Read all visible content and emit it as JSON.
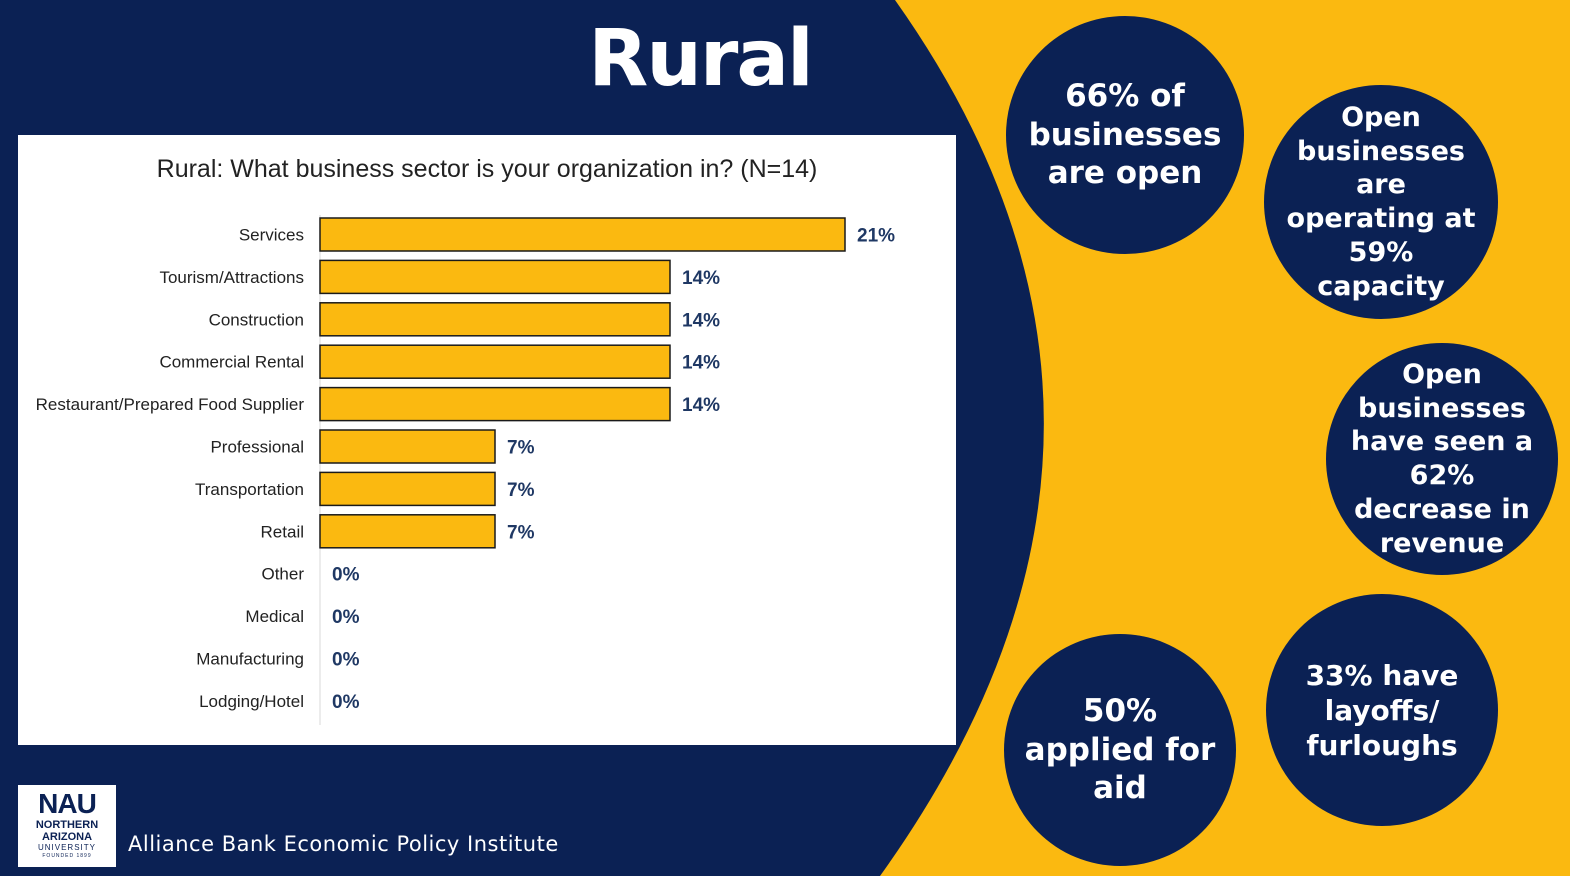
{
  "page": {
    "title": "Rural",
    "institute": "Alliance Bank Economic Policy Institute",
    "logo": {
      "mark": "NAU",
      "line1": "NORTHERN",
      "line2": "ARIZONA",
      "line3": "UNIVERSITY",
      "line4": "FOUNDED 1899"
    },
    "colors": {
      "navy": "#0b2154",
      "gold": "#fbb910",
      "bar": "#fbb910",
      "label": "#1f3864"
    }
  },
  "stats": [
    "66% of businesses are open",
    "Open businesses are operating at 59% capacity",
    "Open businesses have seen a 62% decrease in revenue",
    "33% have layoffs/ furloughs",
    "50% applied for aid"
  ],
  "chart_data": {
    "type": "bar",
    "orientation": "horizontal",
    "title": "Rural: What business sector is your organization in? (N=14)",
    "categories": [
      "Services",
      "Tourism/Attractions",
      "Construction",
      "Commercial Rental",
      "Restaurant/Prepared Food Supplier",
      "Professional",
      "Transportation",
      "Retail",
      "Other",
      "Medical",
      "Manufacturing",
      "Lodging/Hotel"
    ],
    "values": [
      21,
      14,
      14,
      14,
      14,
      7,
      7,
      7,
      0,
      0,
      0,
      0
    ],
    "value_labels": [
      "21%",
      "14%",
      "14%",
      "14%",
      "14%",
      "7%",
      "7%",
      "7%",
      "0%",
      "0%",
      "0%",
      "0%"
    ],
    "unit": "%",
    "xlim": [
      0,
      30
    ],
    "grid": false,
    "legend": "none"
  }
}
